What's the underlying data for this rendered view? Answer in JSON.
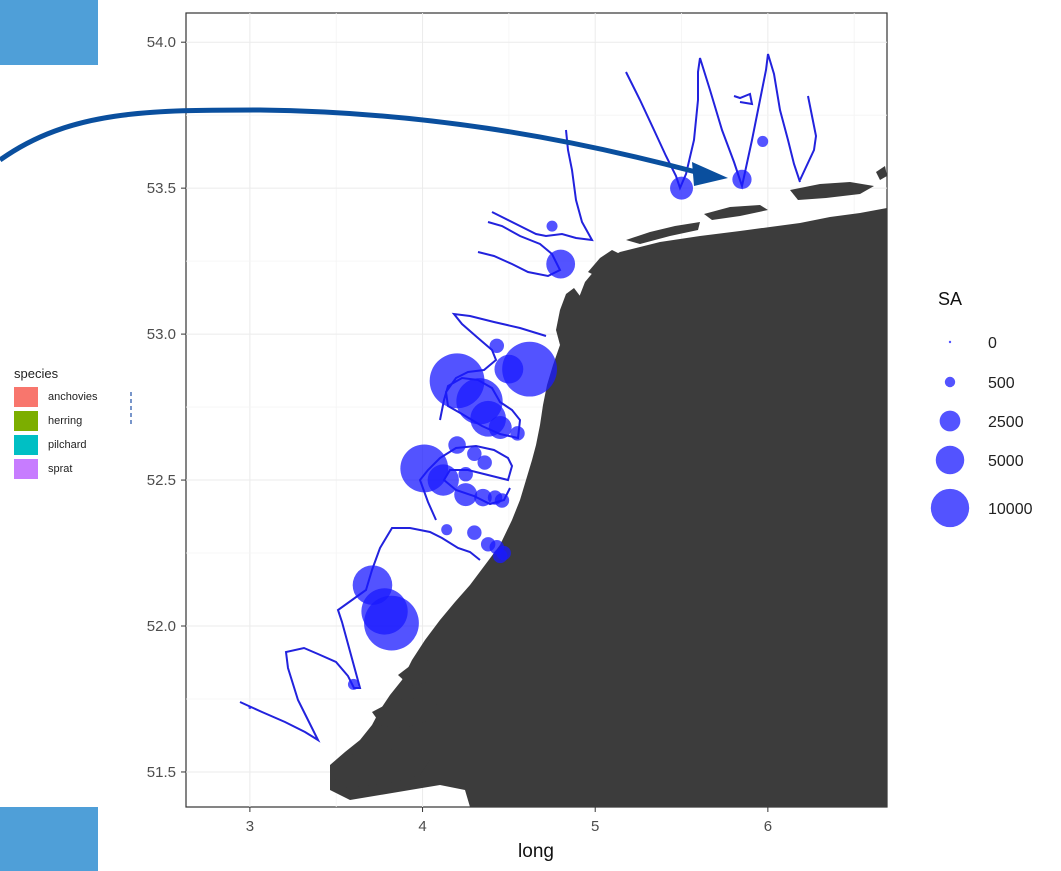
{
  "chart_data": {
    "type": "scatter",
    "title": "",
    "xlabel": "long",
    "ylabel": "",
    "xlim": [
      2.63,
      6.69
    ],
    "ylim": [
      51.38,
      54.1
    ],
    "x_ticks": [
      3,
      4,
      5,
      6
    ],
    "y_ticks": [
      51.5,
      52.0,
      52.5,
      53.0,
      53.5,
      54.0
    ],
    "y_tick_labels": [
      "51.5",
      "52.0",
      "52.5",
      "53.0",
      "53.5",
      "54.0"
    ],
    "grid": true,
    "point_color": "#1a1aff",
    "track_color": "#2222dd",
    "land_color": "#3c3c3c",
    "arrow_color": "#0a4f9e",
    "size_legend": {
      "title": "SA",
      "entries": [
        {
          "label": "0",
          "value": 0
        },
        {
          "label": "500",
          "value": 500
        },
        {
          "label": "2500",
          "value": 2500
        },
        {
          "label": "5000",
          "value": 5000
        },
        {
          "label": "10000",
          "value": 10000
        }
      ]
    },
    "species_legend": {
      "title": "species",
      "entries": [
        {
          "label": "anchovies",
          "color": "#f8766d"
        },
        {
          "label": "herring",
          "color": "#7cae00"
        },
        {
          "label": "pilchard",
          "color": "#00bfc4"
        },
        {
          "label": "sprat",
          "color": "#c77cff"
        }
      ]
    },
    "points": [
      {
        "x": 3.82,
        "y": 52.01,
        "sa": 10000
      },
      {
        "x": 3.78,
        "y": 52.05,
        "sa": 7000
      },
      {
        "x": 3.71,
        "y": 52.14,
        "sa": 5000
      },
      {
        "x": 4.01,
        "y": 52.54,
        "sa": 7500
      },
      {
        "x": 4.12,
        "y": 52.5,
        "sa": 3000
      },
      {
        "x": 4.25,
        "y": 52.45,
        "sa": 1500
      },
      {
        "x": 4.35,
        "y": 52.44,
        "sa": 800
      },
      {
        "x": 4.42,
        "y": 52.44,
        "sa": 500
      },
      {
        "x": 4.46,
        "y": 52.43,
        "sa": 500
      },
      {
        "x": 4.2,
        "y": 52.84,
        "sa": 10000
      },
      {
        "x": 4.33,
        "y": 52.77,
        "sa": 7000
      },
      {
        "x": 4.38,
        "y": 52.71,
        "sa": 4000
      },
      {
        "x": 4.45,
        "y": 52.68,
        "sa": 1500
      },
      {
        "x": 4.55,
        "y": 52.66,
        "sa": 500
      },
      {
        "x": 4.62,
        "y": 52.88,
        "sa": 10000
      },
      {
        "x": 4.5,
        "y": 52.88,
        "sa": 2500
      },
      {
        "x": 4.43,
        "y": 52.96,
        "sa": 500
      },
      {
        "x": 4.2,
        "y": 52.62,
        "sa": 800
      },
      {
        "x": 4.3,
        "y": 52.59,
        "sa": 500
      },
      {
        "x": 4.36,
        "y": 52.56,
        "sa": 500
      },
      {
        "x": 4.25,
        "y": 52.52,
        "sa": 500
      },
      {
        "x": 4.38,
        "y": 52.28,
        "sa": 500
      },
      {
        "x": 4.43,
        "y": 52.27,
        "sa": 500
      },
      {
        "x": 4.47,
        "y": 52.25,
        "sa": 500
      },
      {
        "x": 4.3,
        "y": 52.32,
        "sa": 500
      },
      {
        "x": 4.14,
        "y": 52.33,
        "sa": 250
      },
      {
        "x": 4.45,
        "y": 52.24,
        "sa": 500
      },
      {
        "x": 3.6,
        "y": 51.8,
        "sa": 250
      },
      {
        "x": 3.0,
        "y": 51.72,
        "sa": 0
      },
      {
        "x": 4.8,
        "y": 53.24,
        "sa": 2500
      },
      {
        "x": 4.75,
        "y": 53.37,
        "sa": 250
      },
      {
        "x": 5.5,
        "y": 53.5,
        "sa": 1500
      },
      {
        "x": 5.85,
        "y": 53.53,
        "sa": 1000
      },
      {
        "x": 5.97,
        "y": 53.66,
        "sa": 250
      }
    ]
  }
}
